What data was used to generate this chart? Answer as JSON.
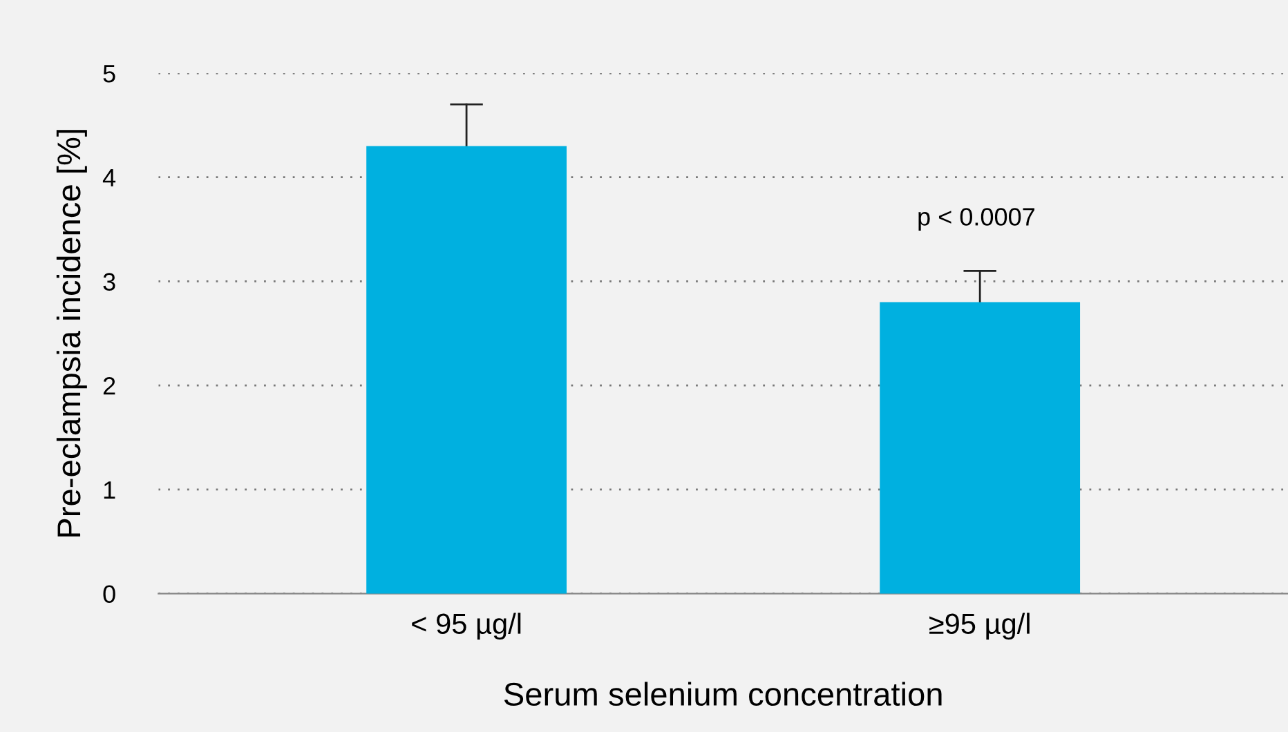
{
  "chart_data": {
    "type": "bar",
    "xlabel": "Serum selenium concentration",
    "ylabel": "Pre-eclampsia incidence [%]",
    "categories": [
      "< 95 µg/l",
      "≥95 µg/l"
    ],
    "values": [
      4.3,
      2.8
    ],
    "errors": [
      [
        4.3,
        4.7
      ],
      [
        2.8,
        3.1
      ]
    ],
    "color": "#00b0e0",
    "ylim": [
      0,
      5
    ],
    "yticks": [
      0,
      1,
      2,
      3,
      4,
      5
    ],
    "grid": "y",
    "annotations": [
      "p < 0.0007"
    ]
  }
}
